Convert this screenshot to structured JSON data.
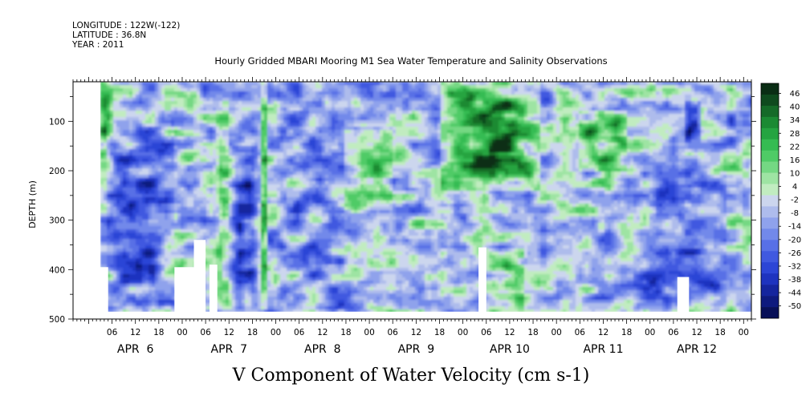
{
  "header": {
    "longitude": "LONGITUDE : 122W(-122)",
    "latitude": "LATITUDE : 36.8N",
    "year": "YEAR : 2011"
  },
  "title": "Hourly Gridded MBARI Mooring M1 Sea Water Temperature and Salinity Observations",
  "bottom_label": "V Component of Water Velocity (cm s-1)",
  "chart_data": {
    "type": "heatmap",
    "title": "Hourly Gridded MBARI Mooring M1 Sea Water Temperature and Salinity Observations",
    "xlabel": "",
    "ylabel": "DEPTH (m)",
    "colorbar_label": "V Component of Water Velocity (cm s-1)",
    "x_range": [
      "APR 5 20:00",
      "APR 13 02:00"
    ],
    "y_range": [
      500,
      20
    ],
    "y_inverted": true,
    "yticks": [
      100,
      200,
      300,
      400,
      500
    ],
    "hour_tick_labels": [
      "06",
      "12",
      "18",
      "00",
      "06",
      "12",
      "18",
      "00",
      "06",
      "12",
      "18",
      "00",
      "06",
      "12",
      "18",
      "00",
      "06",
      "12",
      "18",
      "00",
      "06",
      "12",
      "18",
      "00",
      "06",
      "12",
      "18",
      "00",
      "06",
      "12",
      "18",
      "00"
    ],
    "day_labels": [
      "APR  6",
      "APR  7",
      "APR  8",
      "APR  9",
      "APR 10",
      "APR 11",
      "APR 12"
    ],
    "colorbar_ticks": [
      "46",
      "40",
      "34",
      "28",
      "22",
      "16",
      "10",
      "4",
      "-2",
      "-8",
      "-14",
      "-20",
      "-26",
      "-32",
      "-38",
      "-44",
      "-50"
    ],
    "colorbar_colors": [
      "#0a2d14",
      "#0f4a1e",
      "#156a28",
      "#1b8a33",
      "#25a441",
      "#35bc52",
      "#4fcb66",
      "#74d883",
      "#9ee4a3",
      "#c1ecc0",
      "#ccd6ee",
      "#aebcec",
      "#8fa2ec",
      "#7289ea",
      "#5870e6",
      "#4059e0",
      "#2c45d6",
      "#1e33bf",
      "#15259e",
      "#0e1a7e",
      "#081058"
    ],
    "data_extent": {
      "depth_top": 20,
      "depth_bottom": 485,
      "time_start": "APR 6 03:00",
      "time_end": "APR 13 02:00"
    },
    "missing_regions": [
      {
        "time": [
          "APR 6 03:00",
          "APR 6 05:00"
        ],
        "depth": [
          395,
          485
        ]
      },
      {
        "time": [
          "APR 6 22:00",
          "APR 7 03:00"
        ],
        "depth": [
          395,
          485
        ]
      },
      {
        "time": [
          "APR 7 03:00",
          "APR 7 06:00"
        ],
        "depth": [
          340,
          485
        ]
      },
      {
        "time": [
          "APR 7 07:00",
          "APR 7 09:00"
        ],
        "depth": [
          390,
          485
        ]
      },
      {
        "time": [
          "APR 10 04:00",
          "APR 10 06:00"
        ],
        "depth": [
          355,
          485
        ]
      },
      {
        "time": [
          "APR 12 07:00",
          "APR 12 10:00"
        ],
        "depth": [
          415,
          485
        ]
      }
    ],
    "regions": [
      {
        "time": [
          "APR 6 03:00",
          "APR 6 06:00"
        ],
        "depth": [
          20,
          200
        ],
        "v": 12
      },
      {
        "time": [
          "APR 6 05:00",
          "APR 6 22:00"
        ],
        "depth": [
          100,
          480
        ],
        "v": -22
      },
      {
        "time": [
          "APR 7 09:00",
          "APR 7 12:00"
        ],
        "depth": [
          60,
          480
        ],
        "v": 8
      },
      {
        "time": [
          "APR 7 13:00",
          "APR 7 19:00"
        ],
        "depth": [
          150,
          480
        ],
        "v": -28
      },
      {
        "time": [
          "APR 7 20:00",
          "APR 7 22:00"
        ],
        "depth": [
          20,
          480
        ],
        "v": 18
      },
      {
        "time": [
          "APR 8 00:00",
          "APR 8 18:00"
        ],
        "depth": [
          20,
          480
        ],
        "v": -14
      },
      {
        "time": [
          "APR 8 18:00",
          "APR 9 06:00"
        ],
        "depth": [
          120,
          280
        ],
        "v": 16
      },
      {
        "time": [
          "APR 9 18:00",
          "APR 10 20:00"
        ],
        "depth": [
          20,
          240
        ],
        "v": 24
      },
      {
        "time": [
          "APR 10 07:00",
          "APR 10 14:00"
        ],
        "depth": [
          90,
          160
        ],
        "v": 40
      },
      {
        "time": [
          "APR 10 06:00",
          "APR 10 16:00"
        ],
        "depth": [
          360,
          485
        ],
        "v": 14
      },
      {
        "time": [
          "APR 11 06:00",
          "APR 11 18:00"
        ],
        "depth": [
          80,
          200
        ],
        "v": 22
      },
      {
        "time": [
          "APR 11 20:00",
          "APR 12 20:00"
        ],
        "depth": [
          200,
          480
        ],
        "v": -18
      },
      {
        "time": [
          "APR 12 09:00",
          "APR 12 13:00"
        ],
        "depth": [
          60,
          140
        ],
        "v": -34
      }
    ]
  }
}
